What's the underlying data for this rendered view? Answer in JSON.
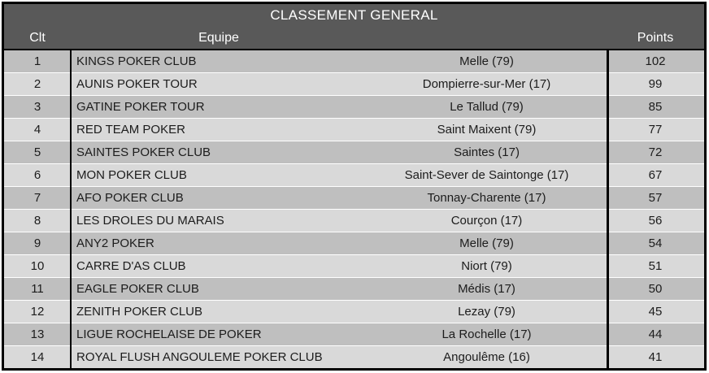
{
  "colors": {
    "header_bg": "#595959",
    "header_text": "#ffffff",
    "row_odd": "#bfbfbf",
    "row_even": "#d9d9d9",
    "row_separator": "#ffffff",
    "border": "#000000",
    "text": "#1c1c1c",
    "page_bg": "#ffffff"
  },
  "header": {
    "title": "CLASSEMENT GENERAL",
    "col_rank": "Clt",
    "col_team": "Equipe",
    "col_points": "Points"
  },
  "chart_data": {
    "type": "table",
    "title": "CLASSEMENT GENERAL",
    "columns": [
      "Clt",
      "Equipe",
      "Points"
    ],
    "rows": [
      {
        "rank": "1",
        "team": "KINGS POKER CLUB",
        "city": "Melle (79)",
        "points": "102"
      },
      {
        "rank": "2",
        "team": "AUNIS POKER TOUR",
        "city": "Dompierre-sur-Mer (17)",
        "points": "99"
      },
      {
        "rank": "3",
        "team": "GATINE POKER TOUR",
        "city": "Le Tallud (79)",
        "points": "85"
      },
      {
        "rank": "4",
        "team": "RED TEAM POKER",
        "city": "Saint Maixent (79)",
        "points": "77"
      },
      {
        "rank": "5",
        "team": "SAINTES POKER CLUB",
        "city": "Saintes (17)",
        "points": "72"
      },
      {
        "rank": "6",
        "team": "MON POKER CLUB",
        "city": "Saint-Sever de Saintonge (17)",
        "points": "67"
      },
      {
        "rank": "7",
        "team": "AFO POKER CLUB",
        "city": "Tonnay-Charente (17)",
        "points": "57"
      },
      {
        "rank": "8",
        "team": "LES DROLES DU MARAIS",
        "city": "Courçon (17)",
        "points": "56"
      },
      {
        "rank": "9",
        "team": "ANY2 POKER",
        "city": "Melle (79)",
        "points": "54"
      },
      {
        "rank": "10",
        "team": "CARRE D'AS CLUB",
        "city": "Niort (79)",
        "points": "51"
      },
      {
        "rank": "11",
        "team": "EAGLE POKER CLUB",
        "city": "Médis (17)",
        "points": "50"
      },
      {
        "rank": "12",
        "team": "ZENITH POKER CLUB",
        "city": "Lezay (79)",
        "points": "45"
      },
      {
        "rank": "13",
        "team": "LIGUE ROCHELAISE DE POKER",
        "city": "La Rochelle (17)",
        "points": "44"
      },
      {
        "rank": "14",
        "team": "ROYAL FLUSH ANGOULEME POKER CLUB",
        "city": "Angoulême (16)",
        "points": "41"
      }
    ]
  }
}
